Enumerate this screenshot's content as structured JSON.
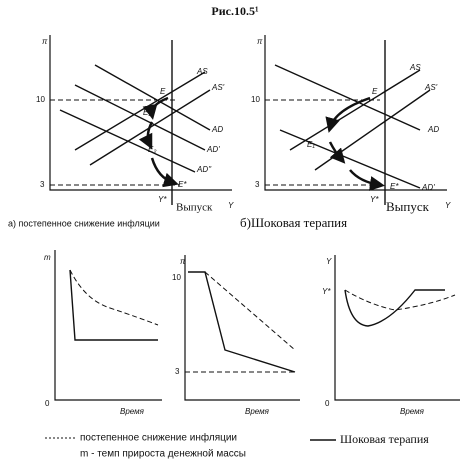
{
  "title": "Рис.10.5¹",
  "panel_a": {
    "y_axis": "π",
    "tick_high": "10",
    "tick_low": "3",
    "curves": [
      "AS",
      "AS'",
      "AD",
      "AD'",
      "AD''"
    ],
    "points": [
      "E",
      "E₁",
      "E₂",
      "E*"
    ],
    "x_mark": "Y*",
    "x_axis": "Выпуск",
    "x_symbol": "Y",
    "caption": "а) постепенное снижение инфляции"
  },
  "panel_b": {
    "y_axis": "π",
    "tick_high": "10",
    "tick_low": "3",
    "curves": [
      "AS",
      "AS'",
      "AD",
      "AD'"
    ],
    "points": [
      "E",
      "E₁",
      "E*"
    ],
    "x_mark": "Y*",
    "x_axis": "Выпуск",
    "x_symbol": "Y",
    "caption": "б)Шоковая терапия"
  },
  "panel_money": {
    "y_axis": "m",
    "origin": "0",
    "x_axis": "Время"
  },
  "panel_inflation": {
    "y_axis": "π",
    "tick_high": "10",
    "tick_low": "3",
    "x_axis": "Время"
  },
  "panel_output": {
    "y_axis": "Y",
    "y_mark": "Y*",
    "origin": "0",
    "x_axis": "Время"
  },
  "legend": {
    "gradual": "постепенное снижение инфляции",
    "note": "m - темп прироста денежной массы",
    "shock": "Шоковая терапия"
  }
}
